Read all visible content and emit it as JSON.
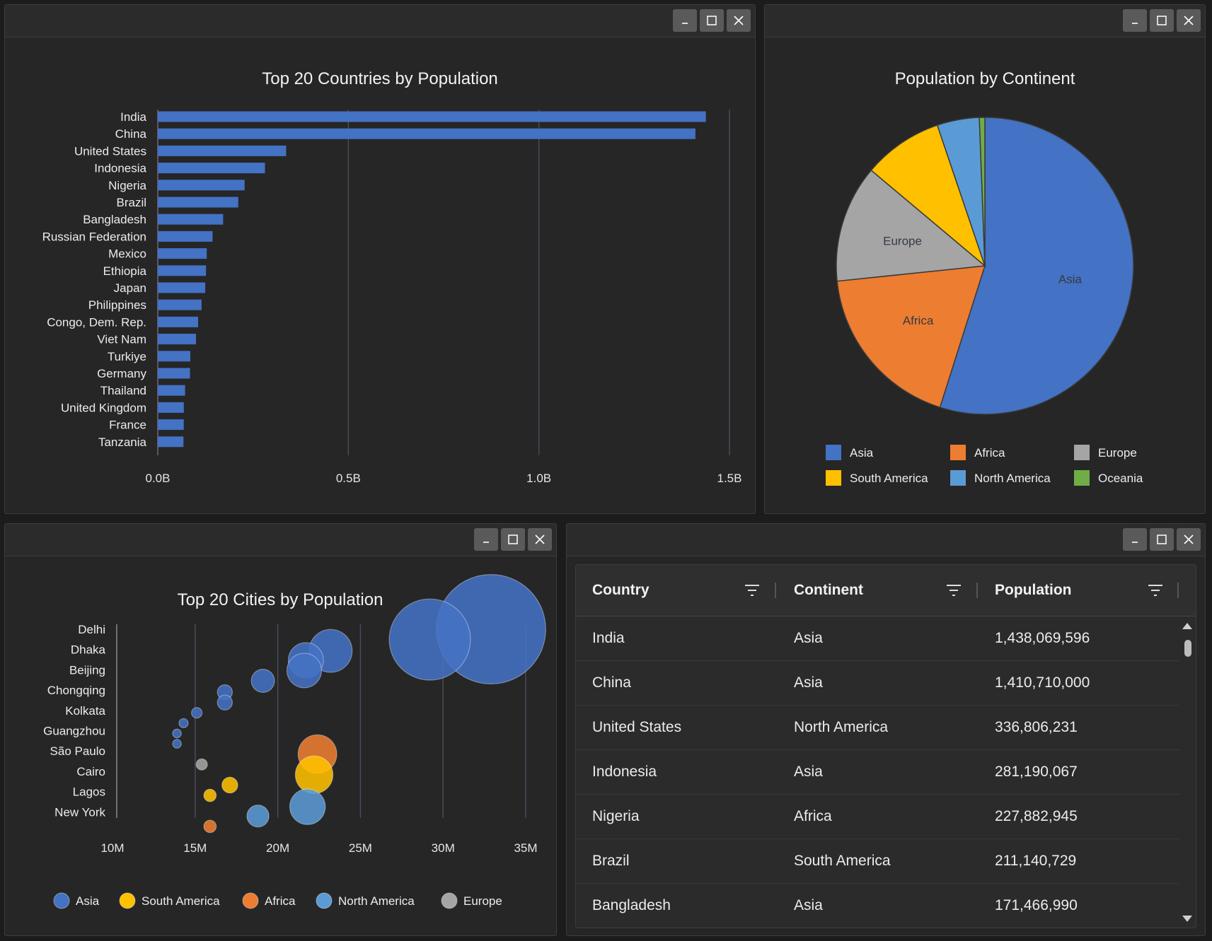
{
  "colors": {
    "Asia": "#4472c4",
    "Africa": "#ed7d31",
    "Europe": "#a5a5a5",
    "South America": "#ffc000",
    "North America": "#5b9bd5",
    "Oceania": "#70ad47"
  },
  "bar_panel": {
    "chart_data": {
      "type": "bar",
      "orientation": "horizontal",
      "title": "Top 20 Countries by Population",
      "categories": [
        "India",
        "China",
        "United States",
        "Indonesia",
        "Nigeria",
        "Brazil",
        "Bangladesh",
        "Russian Federation",
        "Mexico",
        "Ethiopia",
        "Japan",
        "Philippines",
        "Congo, Dem. Rep.",
        "Viet Nam",
        "Turkiye",
        "Germany",
        "Thailand",
        "United Kingdom",
        "France",
        "Tanzania"
      ],
      "values": [
        1438069596,
        1410710000,
        336806231,
        281190067,
        227882945,
        211140729,
        171466990,
        143826130,
        128455567,
        126527060,
        124516650,
        114891199,
        105789731,
        100352192,
        85326000,
        84482267,
        71702435,
        68350000,
        68170228,
        67438106
      ],
      "xlim": [
        0,
        1500000000
      ],
      "xticks": [
        0,
        500000000,
        1000000000,
        1500000000
      ],
      "xtick_labels": [
        "0.0B",
        "0.5B",
        "1.0B",
        "1.5B"
      ],
      "grid": true
    }
  },
  "pie_panel": {
    "chart_data": {
      "type": "pie",
      "title": "Population by Continent",
      "slices": [
        {
          "label": "Asia",
          "value": 55.0
        },
        {
          "label": "Africa",
          "value": 18.5
        },
        {
          "label": "Europe",
          "value": 12.8
        },
        {
          "label": "South America",
          "value": 8.7
        },
        {
          "label": "North America",
          "value": 4.6
        },
        {
          "label": "Oceania",
          "value": 0.6
        }
      ],
      "slice_labels_shown": [
        "Asia",
        "Africa",
        "Europe"
      ],
      "legend": [
        "Asia",
        "Africa",
        "Europe",
        "South America",
        "North America",
        "Oceania"
      ],
      "legend_position": "bottom"
    }
  },
  "bubble_panel": {
    "chart_data": {
      "type": "scatter",
      "title": "Top 20 Cities by Population",
      "ytick_labels": [
        "Delhi",
        "Dhaka",
        "Beijing",
        "Chongqing",
        "Kolkata",
        "Guangzhou",
        "São Paulo",
        "Cairo",
        "Lagos",
        "New York"
      ],
      "xlim": [
        10,
        35
      ],
      "xticks": [
        10,
        15,
        20,
        25,
        30,
        35
      ],
      "xtick_labels": [
        "10M",
        "15M",
        "20M",
        "25M",
        "30M",
        "35M"
      ],
      "grid": true,
      "legend": [
        "Asia",
        "South America",
        "Africa",
        "North America",
        "Europe"
      ],
      "legend_position": "bottom",
      "points": [
        {
          "continent": "Asia",
          "x": 32.9,
          "row": 0.0
        },
        {
          "continent": "Asia",
          "x": 29.2,
          "row": 0.5
        },
        {
          "continent": "Asia",
          "x": 23.2,
          "row": 1.05
        },
        {
          "continent": "Asia",
          "x": 21.7,
          "row": 1.5
        },
        {
          "continent": "Asia",
          "x": 21.6,
          "row": 2.0
        },
        {
          "continent": "Asia",
          "x": 19.1,
          "row": 2.5
        },
        {
          "continent": "Asia",
          "x": 16.8,
          "row": 3.05
        },
        {
          "continent": "Asia",
          "x": 16.8,
          "row": 3.55
        },
        {
          "continent": "Asia",
          "x": 15.1,
          "row": 4.05
        },
        {
          "continent": "Asia",
          "x": 14.3,
          "row": 4.55
        },
        {
          "continent": "Asia",
          "x": 13.9,
          "row": 5.05
        },
        {
          "continent": "Asia",
          "x": 13.9,
          "row": 5.55
        },
        {
          "continent": "Africa",
          "x": 22.4,
          "row": 6.05
        },
        {
          "continent": "Europe",
          "x": 15.4,
          "row": 6.55
        },
        {
          "continent": "South America",
          "x": 22.2,
          "row": 7.05
        },
        {
          "continent": "South America",
          "x": 17.1,
          "row": 7.55
        },
        {
          "continent": "South America",
          "x": 15.9,
          "row": 8.05
        },
        {
          "continent": "North America",
          "x": 21.8,
          "row": 8.6
        },
        {
          "continent": "North America",
          "x": 18.8,
          "row": 9.05
        },
        {
          "continent": "Africa",
          "x": 15.9,
          "row": 9.55
        }
      ]
    }
  },
  "table_panel": {
    "headers": {
      "country": "Country",
      "continent": "Continent",
      "population": "Population"
    },
    "rows": [
      {
        "country": "India",
        "continent": "Asia",
        "population": "1,438,069,596"
      },
      {
        "country": "China",
        "continent": "Asia",
        "population": "1,410,710,000"
      },
      {
        "country": "United States",
        "continent": "North America",
        "population": "336,806,231"
      },
      {
        "country": "Indonesia",
        "continent": "Asia",
        "population": "281,190,067"
      },
      {
        "country": "Nigeria",
        "continent": "Africa",
        "population": "227,882,945"
      },
      {
        "country": "Brazil",
        "continent": "South America",
        "population": "211,140,729"
      },
      {
        "country": "Bangladesh",
        "continent": "Asia",
        "population": "171,466,990"
      }
    ]
  }
}
